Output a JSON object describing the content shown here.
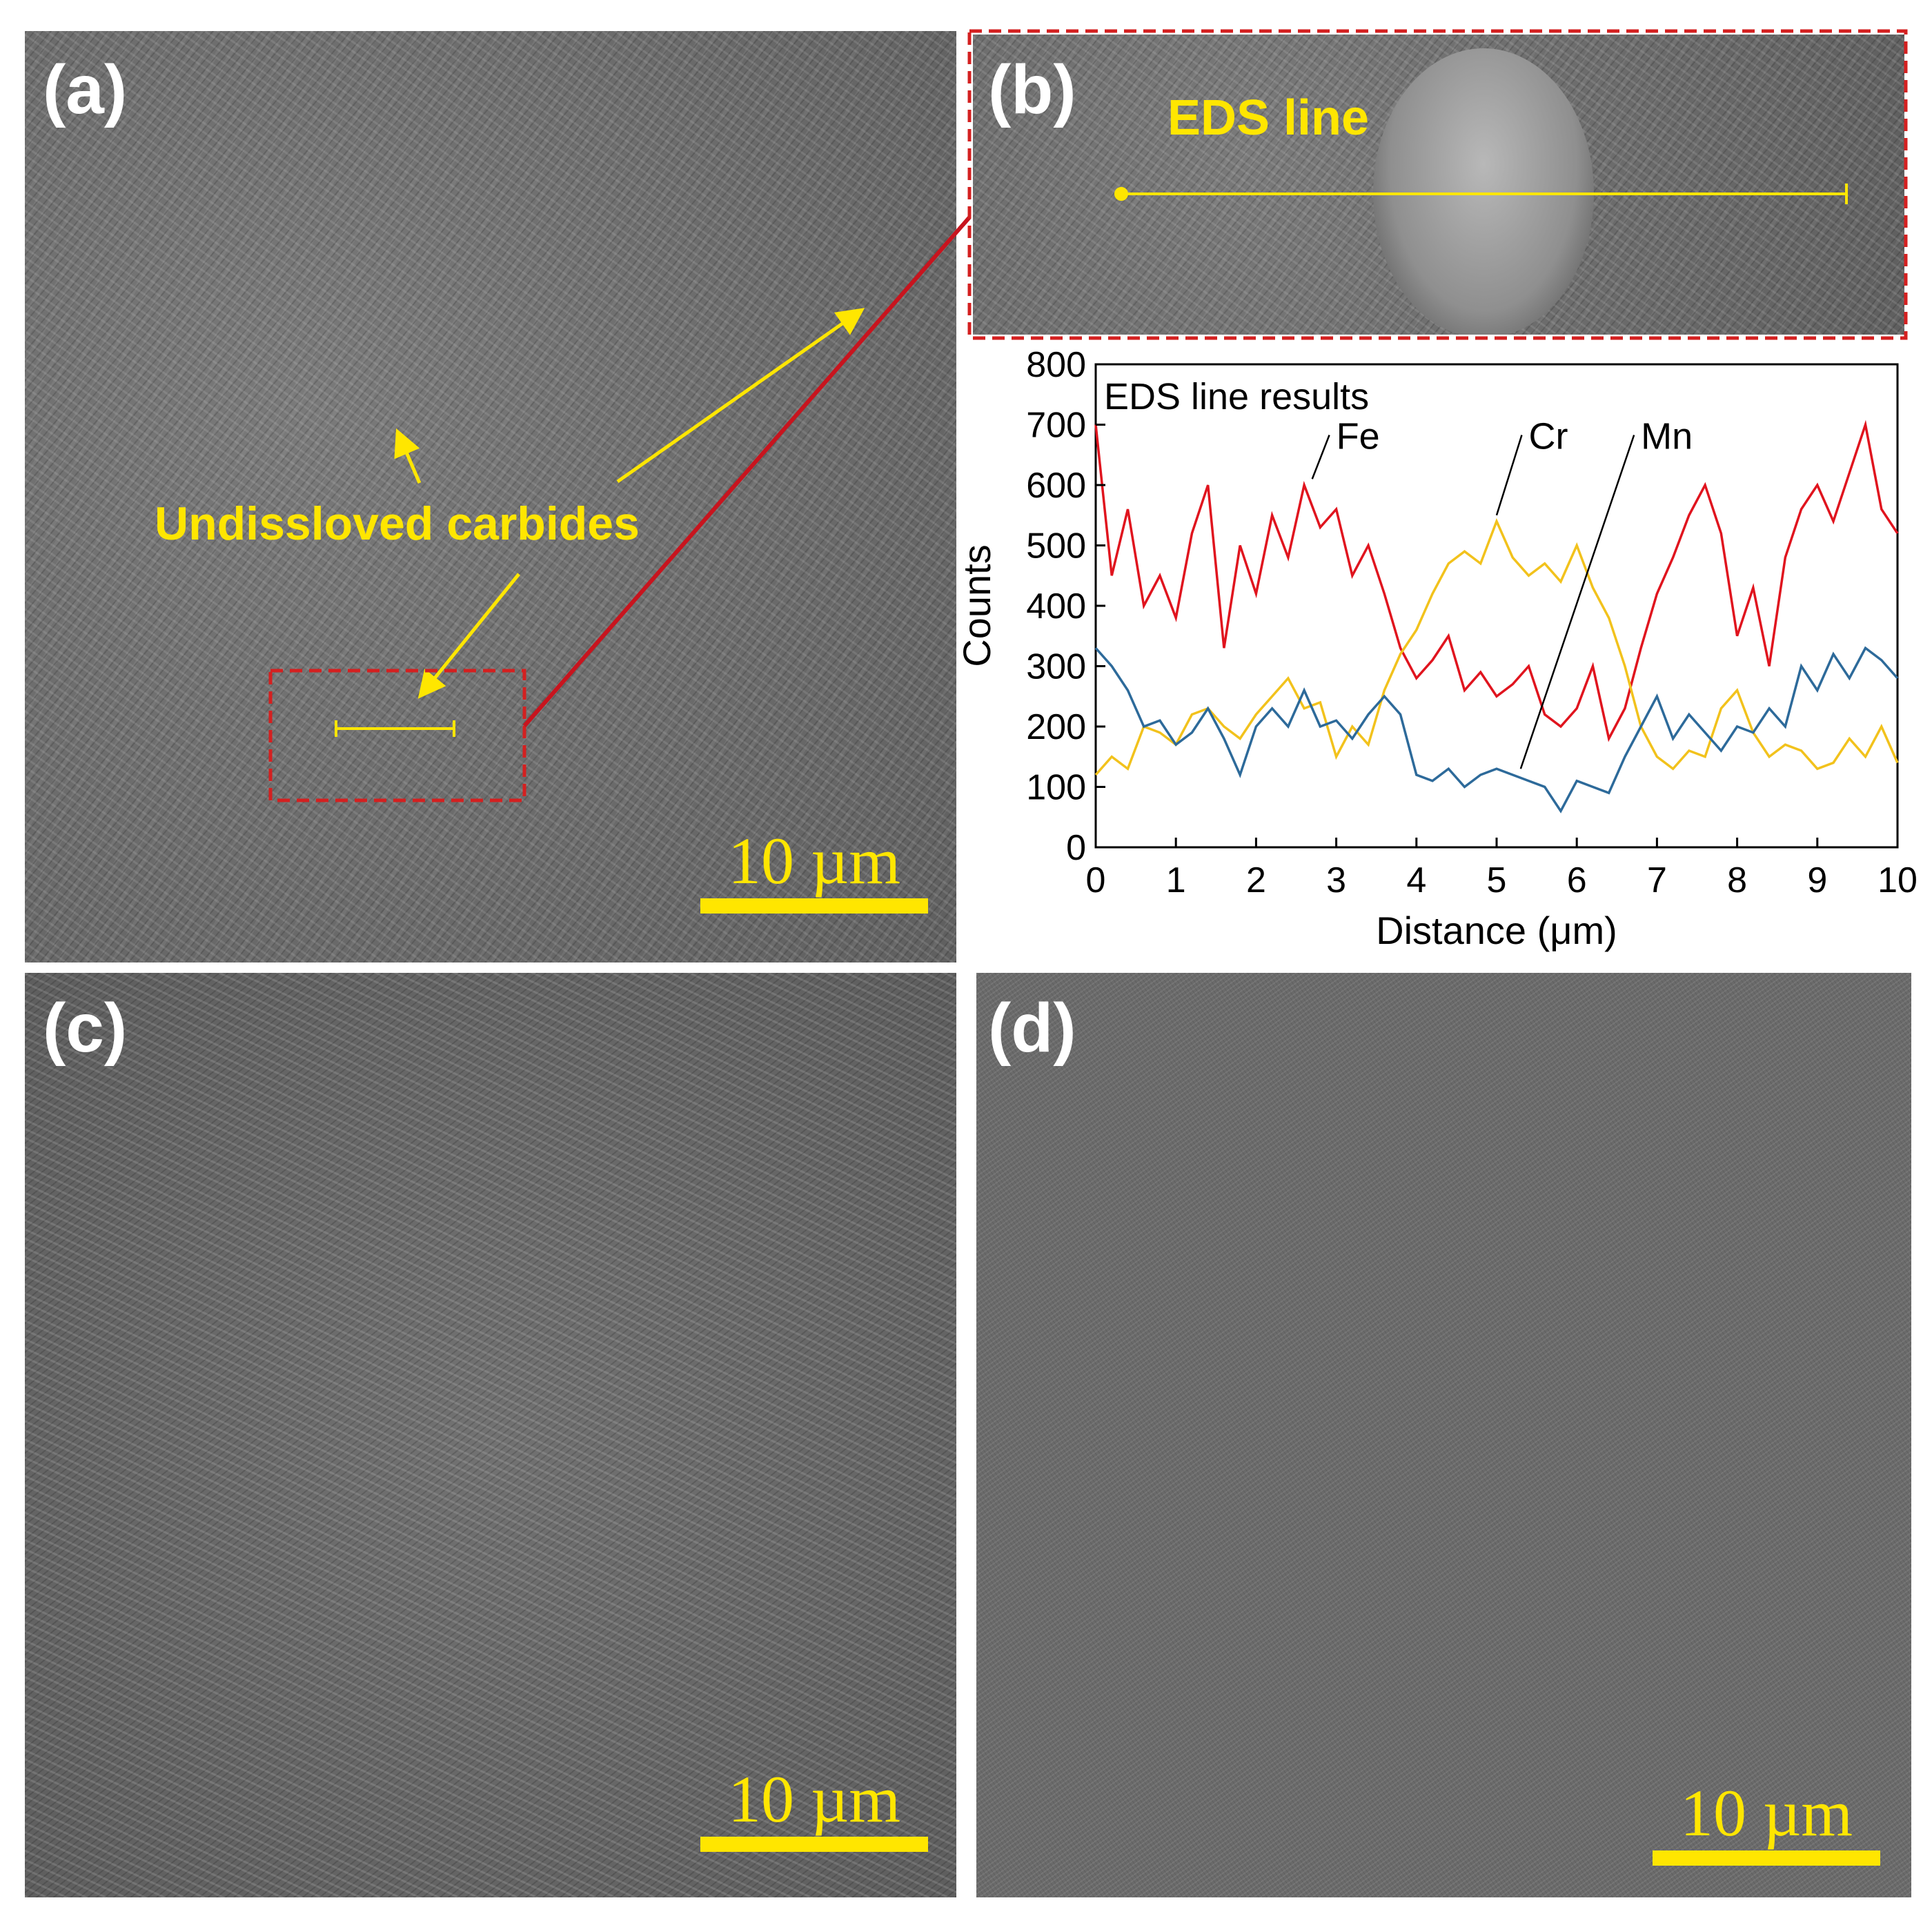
{
  "panels": {
    "a": {
      "label": "(a)",
      "annotation": "Undissloved carbides",
      "scale_bar": "10 µm"
    },
    "b": {
      "label": "(b)",
      "annotation": "EDS line"
    },
    "c": {
      "label": "(c)",
      "scale_bar": "10 µm"
    },
    "d": {
      "label": "(d)",
      "scale_bar": "10 µm"
    }
  },
  "colors": {
    "Fe": "#e0141e",
    "Cr": "#f2c21c",
    "Mn": "#2d6a9a",
    "annotation": "#ffe600",
    "box": "#d42020"
  },
  "chart_data": {
    "type": "line",
    "title": "EDS line results",
    "xlabel": "Distance (μm)",
    "ylabel": "Counts",
    "xlim": [
      0,
      10
    ],
    "ylim": [
      0,
      800
    ],
    "xticks": [
      "0",
      "1",
      "2",
      "3",
      "4",
      "5",
      "6",
      "7",
      "8",
      "9",
      "10"
    ],
    "yticks": [
      "0",
      "100",
      "200",
      "300",
      "400",
      "500",
      "600",
      "700",
      "800"
    ],
    "x": [
      0,
      0.2,
      0.4,
      0.6,
      0.8,
      1,
      1.2,
      1.4,
      1.6,
      1.8,
      2,
      2.2,
      2.4,
      2.6,
      2.8,
      3,
      3.2,
      3.4,
      3.6,
      3.8,
      4,
      4.2,
      4.4,
      4.6,
      4.8,
      5,
      5.2,
      5.4,
      5.6,
      5.8,
      6,
      6.2,
      6.4,
      6.6,
      6.8,
      7,
      7.2,
      7.4,
      7.6,
      7.8,
      8,
      8.2,
      8.4,
      8.6,
      8.8,
      9,
      9.2,
      9.4,
      9.6,
      9.8,
      10
    ],
    "series": [
      {
        "name": "Fe",
        "values": [
          700,
          450,
          560,
          400,
          450,
          380,
          520,
          600,
          330,
          500,
          420,
          550,
          480,
          600,
          530,
          560,
          450,
          500,
          420,
          330,
          280,
          310,
          350,
          260,
          290,
          250,
          270,
          300,
          220,
          200,
          230,
          300,
          180,
          230,
          330,
          420,
          480,
          550,
          600,
          520,
          350,
          430,
          300,
          480,
          560,
          600,
          540,
          620,
          700,
          560,
          520
        ]
      },
      {
        "name": "Cr",
        "values": [
          120,
          150,
          130,
          200,
          190,
          170,
          220,
          230,
          200,
          180,
          220,
          250,
          280,
          230,
          240,
          150,
          200,
          170,
          260,
          320,
          360,
          420,
          470,
          490,
          470,
          540,
          480,
          450,
          470,
          440,
          500,
          430,
          380,
          300,
          200,
          150,
          130,
          160,
          150,
          230,
          260,
          190,
          150,
          170,
          160,
          130,
          140,
          180,
          150,
          200,
          140
        ]
      },
      {
        "name": "Mn",
        "values": [
          330,
          300,
          260,
          200,
          210,
          170,
          190,
          230,
          180,
          120,
          200,
          230,
          200,
          260,
          200,
          210,
          180,
          220,
          250,
          220,
          120,
          110,
          130,
          100,
          120,
          130,
          120,
          110,
          100,
          60,
          110,
          100,
          90,
          150,
          200,
          250,
          180,
          220,
          190,
          160,
          200,
          190,
          230,
          200,
          300,
          260,
          320,
          280,
          330,
          310,
          280
        ]
      }
    ],
    "annotations": [
      {
        "text": "Fe",
        "label_at": [
          3.0,
          660
        ],
        "arrow_to": [
          2.7,
          610
        ]
      },
      {
        "text": "Cr",
        "label_at": [
          5.4,
          660
        ],
        "arrow_to": [
          5.0,
          550
        ]
      },
      {
        "text": "Mn",
        "label_at": [
          6.8,
          660
        ],
        "arrow_to": [
          5.3,
          130
        ]
      }
    ],
    "grid": false,
    "legend": "none"
  }
}
